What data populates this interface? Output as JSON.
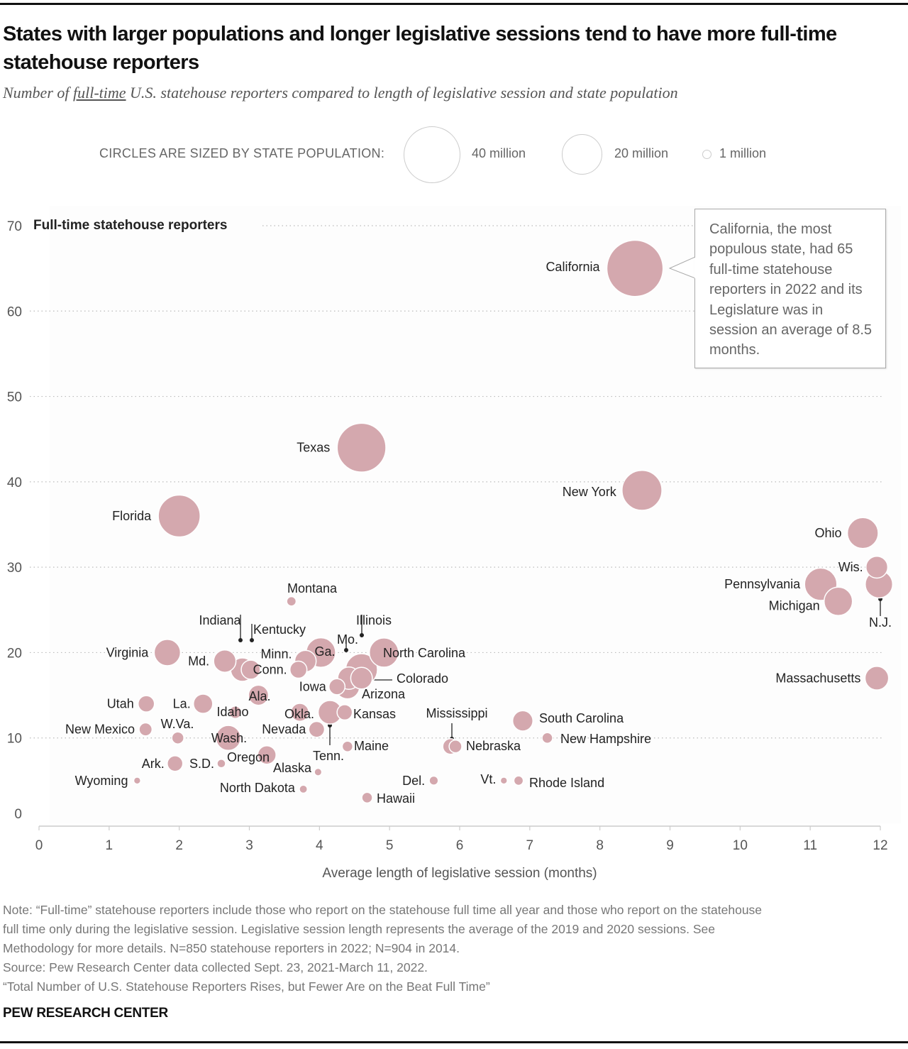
{
  "title": "States with larger populations and longer legislative sessions tend to have more full-time statehouse reporters",
  "subtitle": {
    "prefix": "Number of ",
    "emphasis": "full-time",
    "suffix": " U.S. statehouse reporters compared to length of legislative session and state population"
  },
  "size_legend": {
    "label": "CIRCLES ARE SIZED BY STATE POPULATION:",
    "items": [
      {
        "label": "40 million",
        "population_millions": 40
      },
      {
        "label": "20 million",
        "population_millions": 20
      },
      {
        "label": "1 million",
        "population_millions": 1
      }
    ]
  },
  "annotation": {
    "text": "California, the most populous state, had 65 full-time statehouse reporters in 2022 and its Legislature was in session an average of 8.5 months.",
    "target": "California"
  },
  "notes": {
    "lines": [
      "Note: “Full-time” statehouse reporters include those who report on the statehouse full time all year and those who report on the statehouse",
      "full time only during the legislative session. Legislative session length represents the average of the 2019 and 2020 sessions. See",
      "Methodology for more details. N=850 statehouse reporters in 2022; N=904 in 2014.",
      "Source: Pew Research Center data collected Sept. 23, 2021-March 11, 2022.",
      "“Total Number of U.S. Statehouse Reporters Rises, but Fewer Are on the Beat Full Time”"
    ]
  },
  "brand": "PEW RESEARCH CENTER",
  "colors": {
    "bubble": "#d4a8ae",
    "bubble_stroke": "#ffffff",
    "grid": "#bbbbbb",
    "axis": "#cccccc",
    "leader": "#222222"
  },
  "chart_data": {
    "type": "scatter",
    "title": "States with larger populations and longer legislative sessions tend to have more full-time statehouse reporters",
    "xlabel": "Average length of legislative session (months)",
    "ylabel": "Full-time statehouse reporters",
    "xlim": [
      0,
      12
    ],
    "ylim": [
      0,
      70
    ],
    "xticks": [
      0,
      1,
      2,
      3,
      4,
      5,
      6,
      7,
      8,
      9,
      10,
      11,
      12
    ],
    "yticks": [
      0,
      10,
      20,
      30,
      40,
      50,
      60,
      70
    ],
    "grid": "horizontal dotted",
    "size_encoding": "state population (millions)",
    "points": [
      {
        "state": "California",
        "x": 8.5,
        "y": 65,
        "pop": 39.2,
        "label_pos": "left"
      },
      {
        "state": "Texas",
        "x": 4.6,
        "y": 44,
        "pop": 29.5,
        "label_pos": "left"
      },
      {
        "state": "New York",
        "x": 8.6,
        "y": 39,
        "pop": 19.8,
        "label_pos": "left"
      },
      {
        "state": "Florida",
        "x": 2.0,
        "y": 36,
        "pop": 21.8,
        "label_pos": "left"
      },
      {
        "state": "Ohio",
        "x": 11.75,
        "y": 34,
        "pop": 11.8,
        "label_pos": "left"
      },
      {
        "state": "Wis.",
        "x": 11.95,
        "y": 30,
        "pop": 5.9,
        "label_pos": "left"
      },
      {
        "state": "Pennsylvania",
        "x": 11.15,
        "y": 28,
        "pop": 13.0,
        "label_pos": "left"
      },
      {
        "state": "N.J.",
        "x": 11.98,
        "y": 28,
        "pop": 9.3,
        "label_pos": "below-leader"
      },
      {
        "state": "Michigan",
        "x": 11.4,
        "y": 26,
        "pop": 10.0,
        "label_pos": "left"
      },
      {
        "state": "Massachusetts",
        "x": 11.95,
        "y": 17,
        "pop": 6.9,
        "label_pos": "left"
      },
      {
        "state": "Montana",
        "x": 3.6,
        "y": 26,
        "pop": 1.1,
        "label_pos": "above"
      },
      {
        "state": "Virginia",
        "x": 1.83,
        "y": 20,
        "pop": 8.6,
        "label_pos": "left"
      },
      {
        "state": "Md.",
        "x": 2.65,
        "y": 19,
        "pop": 6.2,
        "label_pos": "left"
      },
      {
        "state": "Indiana",
        "x": 2.9,
        "y": 18,
        "pop": 6.8,
        "label_pos": "above-leader"
      },
      {
        "state": "Kentucky",
        "x": 3.02,
        "y": 18,
        "pop": 4.5,
        "label_pos": "above-leader"
      },
      {
        "state": "Minn.",
        "x": 3.8,
        "y": 19,
        "pop": 5.7,
        "label_pos": "left"
      },
      {
        "state": "Conn.",
        "x": 3.7,
        "y": 18,
        "pop": 3.6,
        "label_pos": "left"
      },
      {
        "state": "Ga.",
        "x": 4.02,
        "y": 20,
        "pop": 10.8,
        "label_pos": "inside"
      },
      {
        "state": "Illinois",
        "x": 4.6,
        "y": 18,
        "pop": 12.6,
        "label_pos": "above-leader"
      },
      {
        "state": "Mo.",
        "x": 4.42,
        "y": 17,
        "pop": 6.2,
        "label_pos": "above-leader"
      },
      {
        "state": "North Carolina",
        "x": 4.92,
        "y": 20,
        "pop": 10.6,
        "label_pos": "right"
      },
      {
        "state": "Colorado",
        "x": 4.6,
        "y": 17,
        "pop": 5.8,
        "label_pos": "right-leader"
      },
      {
        "state": "Arizona",
        "x": 4.4,
        "y": 16,
        "pop": 7.3,
        "label_pos": "below-right"
      },
      {
        "state": "Iowa",
        "x": 4.25,
        "y": 16,
        "pop": 3.2,
        "label_pos": "left"
      },
      {
        "state": "Ala.",
        "x": 3.13,
        "y": 15,
        "pop": 5.0,
        "label_pos": "inside"
      },
      {
        "state": "Utah",
        "x": 1.53,
        "y": 14,
        "pop": 3.3,
        "label_pos": "left"
      },
      {
        "state": "La.",
        "x": 2.34,
        "y": 14,
        "pop": 4.6,
        "label_pos": "left"
      },
      {
        "state": "Idaho",
        "x": 2.8,
        "y": 13,
        "pop": 1.9,
        "label_pos": "inside"
      },
      {
        "state": "Okla.",
        "x": 3.72,
        "y": 13,
        "pop": 4.0,
        "label_pos": "inside"
      },
      {
        "state": "Tenn.",
        "x": 4.15,
        "y": 13,
        "pop": 6.9,
        "label_pos": "below-leader"
      },
      {
        "state": "Kansas",
        "x": 4.36,
        "y": 13,
        "pop": 2.9,
        "label_pos": "right"
      },
      {
        "state": "New Mexico",
        "x": 1.52,
        "y": 11,
        "pop": 2.1,
        "label_pos": "left"
      },
      {
        "state": "W.Va.",
        "x": 1.98,
        "y": 10,
        "pop": 1.8,
        "label_pos": "above"
      },
      {
        "state": "Wash.",
        "x": 2.7,
        "y": 10,
        "pop": 7.7,
        "label_pos": "inside"
      },
      {
        "state": "Nevada",
        "x": 3.96,
        "y": 11,
        "pop": 3.1,
        "label_pos": "left"
      },
      {
        "state": "Maine",
        "x": 4.4,
        "y": 9,
        "pop": 1.4,
        "label_pos": "right"
      },
      {
        "state": "Mississippi",
        "x": 5.87,
        "y": 9,
        "pop": 3.0,
        "label_pos": "above-leader"
      },
      {
        "state": "Nebraska",
        "x": 5.94,
        "y": 9,
        "pop": 2.0,
        "label_pos": "right"
      },
      {
        "state": "South Carolina",
        "x": 6.9,
        "y": 12,
        "pop": 5.1,
        "label_pos": "right"
      },
      {
        "state": "New Hampshire",
        "x": 7.25,
        "y": 10,
        "pop": 1.4,
        "label_pos": "right"
      },
      {
        "state": "Oregon",
        "x": 3.25,
        "y": 8,
        "pop": 4.2,
        "label_pos": "inside"
      },
      {
        "state": "Ark.",
        "x": 1.94,
        "y": 7,
        "pop": 3.0,
        "label_pos": "left"
      },
      {
        "state": "S.D.",
        "x": 2.6,
        "y": 7,
        "pop": 0.9,
        "label_pos": "left"
      },
      {
        "state": "Alaska",
        "x": 3.98,
        "y": 6,
        "pop": 0.7,
        "label_pos": "left"
      },
      {
        "state": "Wyoming",
        "x": 1.4,
        "y": 5,
        "pop": 0.6,
        "label_pos": "left"
      },
      {
        "state": "North Dakota",
        "x": 3.77,
        "y": 4,
        "pop": 0.8,
        "label_pos": "left"
      },
      {
        "state": "Del.",
        "x": 5.63,
        "y": 5,
        "pop": 1.0,
        "label_pos": "left"
      },
      {
        "state": "Vt.",
        "x": 6.63,
        "y": 5,
        "pop": 0.6,
        "label_pos": "left"
      },
      {
        "state": "Rhode Island",
        "x": 6.84,
        "y": 5,
        "pop": 1.1,
        "label_pos": "right"
      },
      {
        "state": "Hawaii",
        "x": 4.68,
        "y": 3,
        "pop": 1.4,
        "label_pos": "right"
      }
    ]
  }
}
